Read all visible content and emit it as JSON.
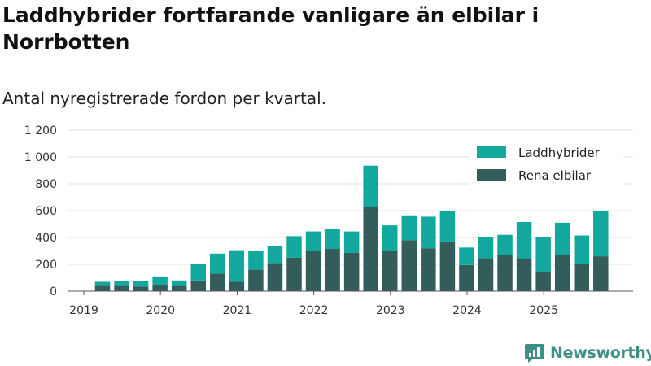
{
  "title": "Laddhybrider fortfarande vanligare än elbilar i Norrbotten",
  "subtitle": "Antal nyregistrerade fordon per kvartal.",
  "brand": {
    "name": "Newsworthy"
  },
  "colors": {
    "laddhybrider": "#13a89e",
    "elbilar": "#335d5b",
    "grid": "#e2e2e2",
    "axis": "#555555"
  },
  "chart_data": {
    "type": "bar",
    "stacked": true,
    "title": "Laddhybrider fortfarande vanligare än elbilar i Norrbotten",
    "subtitle": "Antal nyregistrerade fordon per kvartal.",
    "xlabel": "",
    "ylabel": "",
    "ylim": [
      0,
      1200
    ],
    "yticks": [
      0,
      200,
      400,
      600,
      800,
      1000,
      1200
    ],
    "ytick_labels": [
      "0",
      "200",
      "400",
      "600",
      "800",
      "1 000",
      "1 200"
    ],
    "xtick_labels": [
      "2019",
      "2020",
      "2021",
      "2022",
      "2023",
      "2024",
      "2025"
    ],
    "grid": true,
    "legend_position": "top-right",
    "categories": [
      "2019 Q2",
      "2019 Q3",
      "2019 Q4",
      "2020 Q1",
      "2020 Q2",
      "2020 Q3",
      "2020 Q4",
      "2021 Q1",
      "2021 Q2",
      "2021 Q3",
      "2021 Q4",
      "2022 Q1",
      "2022 Q2",
      "2022 Q3",
      "2022 Q4",
      "2023 Q1",
      "2023 Q2",
      "2023 Q3",
      "2023 Q4",
      "2024 Q1",
      "2024 Q2",
      "2024 Q3",
      "2024 Q4",
      "2025 Q1",
      "2025 Q2",
      "2025 Q3",
      "2025 Q4"
    ],
    "series": [
      {
        "name": "Rena elbilar",
        "values": [
          40,
          40,
          35,
          45,
          40,
          80,
          130,
          70,
          160,
          210,
          250,
          300,
          315,
          285,
          630,
          300,
          380,
          320,
          370,
          195,
          245,
          270,
          245,
          140,
          270,
          200,
          260
        ]
      },
      {
        "name": "Laddhybrider",
        "values": [
          30,
          35,
          40,
          65,
          40,
          125,
          150,
          235,
          140,
          125,
          160,
          145,
          150,
          160,
          305,
          190,
          185,
          235,
          230,
          130,
          160,
          150,
          270,
          265,
          240,
          215,
          335
        ]
      }
    ]
  }
}
